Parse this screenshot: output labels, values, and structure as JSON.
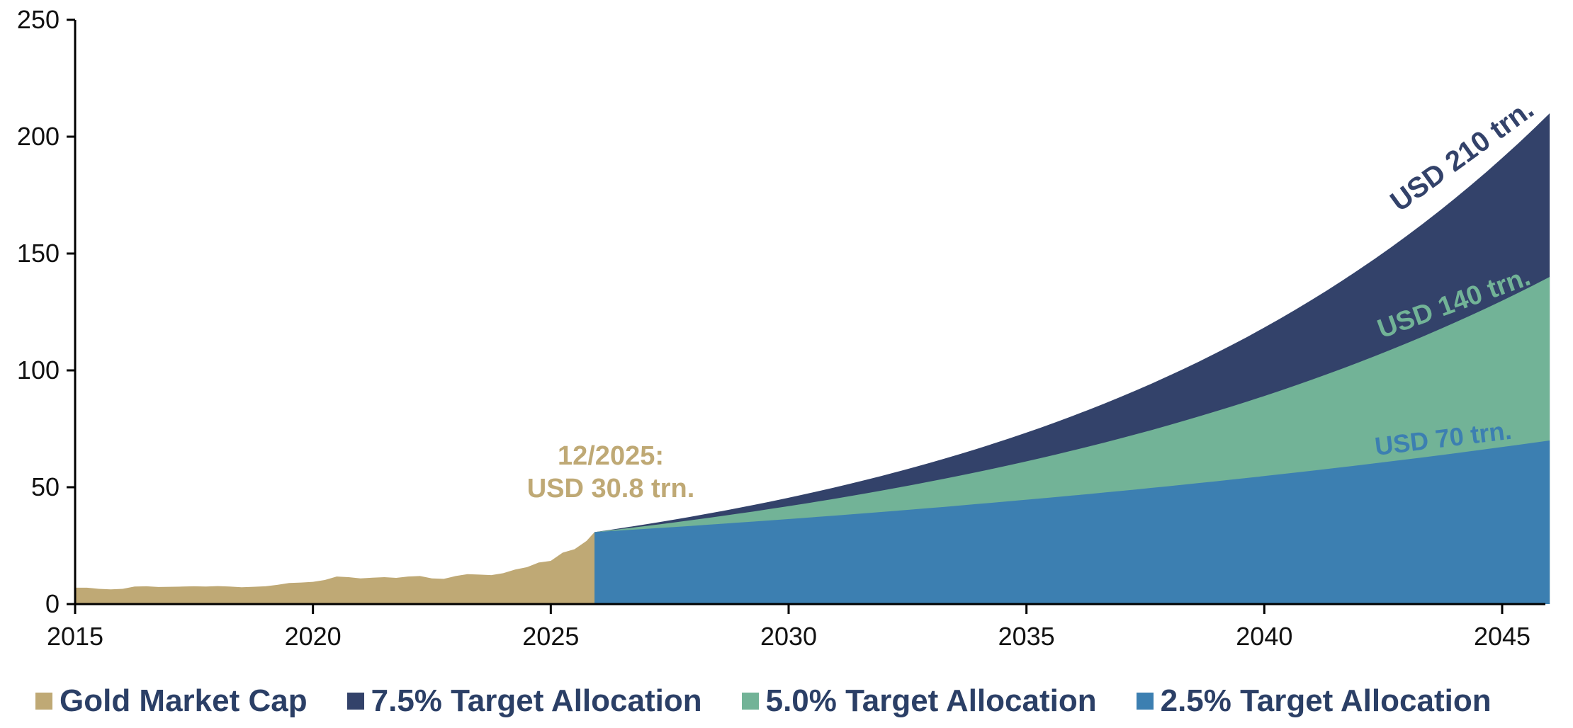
{
  "chart_data": {
    "type": "area",
    "title": "",
    "xlabel": "",
    "ylabel": "",
    "xlim": [
      2015,
      2046
    ],
    "ylim": [
      0,
      250
    ],
    "x_ticks": [
      "2015",
      "2020",
      "2025",
      "2030",
      "2035",
      "2040",
      "2045"
    ],
    "y_ticks": [
      "0",
      "50",
      "100",
      "150",
      "200",
      "250"
    ],
    "grid": false,
    "legend_position": "bottom",
    "colors": {
      "gold": "#bfa975",
      "navy": "#33426a",
      "green": "#72b397",
      "blue": "#3c7fb1",
      "legend_text": "#2b3f66"
    },
    "series": [
      {
        "name": "Gold Market Cap",
        "color": "#bfa975",
        "x": [
          2015.0,
          2015.25,
          2015.5,
          2015.75,
          2016.0,
          2016.25,
          2016.5,
          2016.75,
          2017.0,
          2017.25,
          2017.5,
          2017.75,
          2018.0,
          2018.25,
          2018.5,
          2018.75,
          2019.0,
          2019.25,
          2019.5,
          2019.75,
          2020.0,
          2020.25,
          2020.5,
          2020.75,
          2021.0,
          2021.25,
          2021.5,
          2021.75,
          2022.0,
          2022.25,
          2022.5,
          2022.75,
          2023.0,
          2023.25,
          2023.5,
          2023.75,
          2024.0,
          2024.25,
          2024.5,
          2024.75,
          2025.0,
          2025.25,
          2025.5,
          2025.75,
          2025.92
        ],
        "values": [
          7.0,
          7.0,
          6.5,
          6.3,
          6.5,
          7.5,
          7.6,
          7.3,
          7.4,
          7.5,
          7.6,
          7.5,
          7.7,
          7.5,
          7.2,
          7.4,
          7.6,
          8.2,
          9.0,
          9.2,
          9.5,
          10.3,
          11.8,
          11.5,
          11.0,
          11.3,
          11.5,
          11.2,
          11.8,
          12.0,
          11.0,
          10.8,
          12.0,
          12.8,
          12.6,
          12.4,
          13.2,
          14.8,
          15.8,
          17.8,
          18.5,
          22.0,
          23.5,
          27.0,
          30.8
        ]
      },
      {
        "name": "7.5% Target Allocation",
        "color": "#33426a",
        "x": [
          2025.92,
          2046
        ],
        "start": 30.8,
        "end": 210
      },
      {
        "name": "5.0% Target Allocation",
        "color": "#72b397",
        "x": [
          2025.92,
          2046
        ],
        "start": 30.8,
        "end": 140
      },
      {
        "name": "2.5% Target Allocation",
        "color": "#3c7fb1",
        "x": [
          2025.92,
          2046
        ],
        "start": 30.8,
        "end": 70
      }
    ],
    "annotations": [
      {
        "line1": "12/2025:",
        "line2": "USD 30.8 trn.",
        "color": "#bfa975"
      },
      {
        "text": "USD 210 trn.",
        "color": "#33426a"
      },
      {
        "text": "USD 140 trn.",
        "color": "#72b397"
      },
      {
        "text": "USD 70 trn.",
        "color": "#3c7fb1"
      }
    ]
  }
}
